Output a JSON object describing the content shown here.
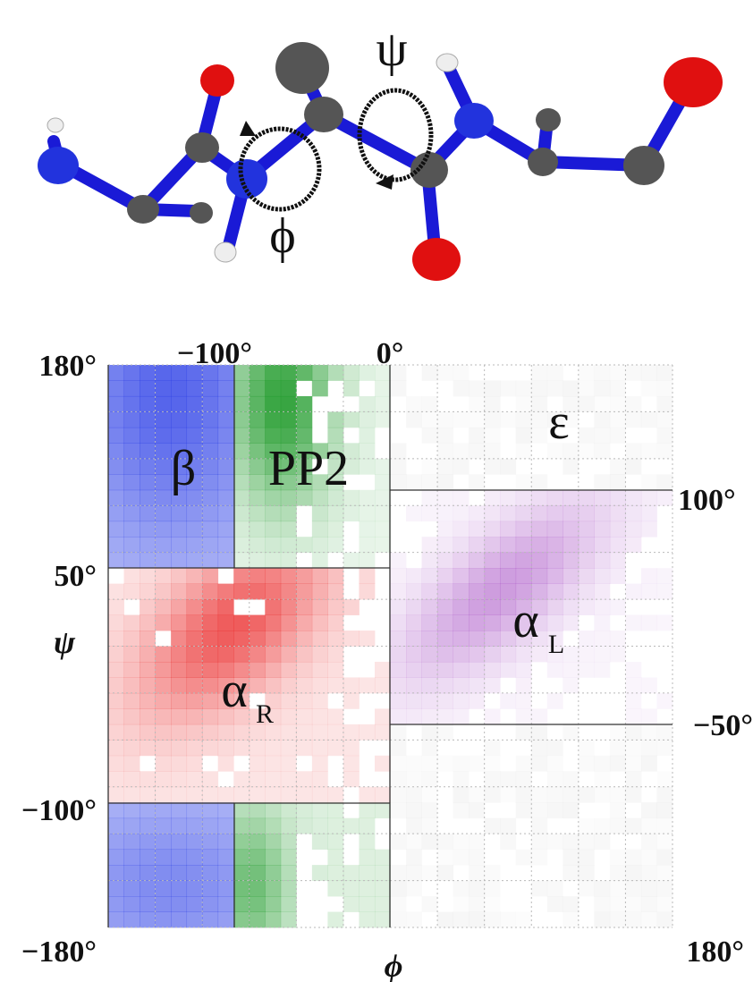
{
  "molecule": {
    "psi_symbol": "ψ",
    "phi_symbol": "ϕ",
    "colors": {
      "bond": "#1a1ad6",
      "carbon": "#555555",
      "nitrogen": "#2233dd",
      "oxygen": "#e01010",
      "hydrogen": "#eeeeee"
    }
  },
  "ramachandran": {
    "axis_ticks": {
      "top": [
        "−100°",
        "0°"
      ],
      "left": [
        "180°",
        "50°",
        "−100°",
        "−180°"
      ],
      "right": [
        "100°",
        "−50°"
      ],
      "bottom_right": "180°"
    },
    "x_axis_symbol": "ϕ",
    "y_axis_symbol": "ψ",
    "regions": [
      {
        "id": "beta",
        "label": "β",
        "subscript": "",
        "color": "#2b3ee6"
      },
      {
        "id": "pp2",
        "label": "PP2",
        "subscript": "",
        "color": "#1f9a2a"
      },
      {
        "id": "alpha_r",
        "label": "α",
        "subscript": "R",
        "color": "#ea2a2a"
      },
      {
        "id": "alpha_l",
        "label": "α",
        "subscript": "L",
        "color": "#a64dc4"
      },
      {
        "id": "epsilon",
        "label": "ε",
        "subscript": "",
        "color": "#9a9a9a"
      }
    ],
    "boundaries_deg": {
      "phi_split": 0,
      "phi_beta_pp2": -100,
      "psi_upper": 50,
      "psi_lower": -100,
      "psi_eps_upper": 100,
      "psi_eps_lower": -50
    }
  }
}
